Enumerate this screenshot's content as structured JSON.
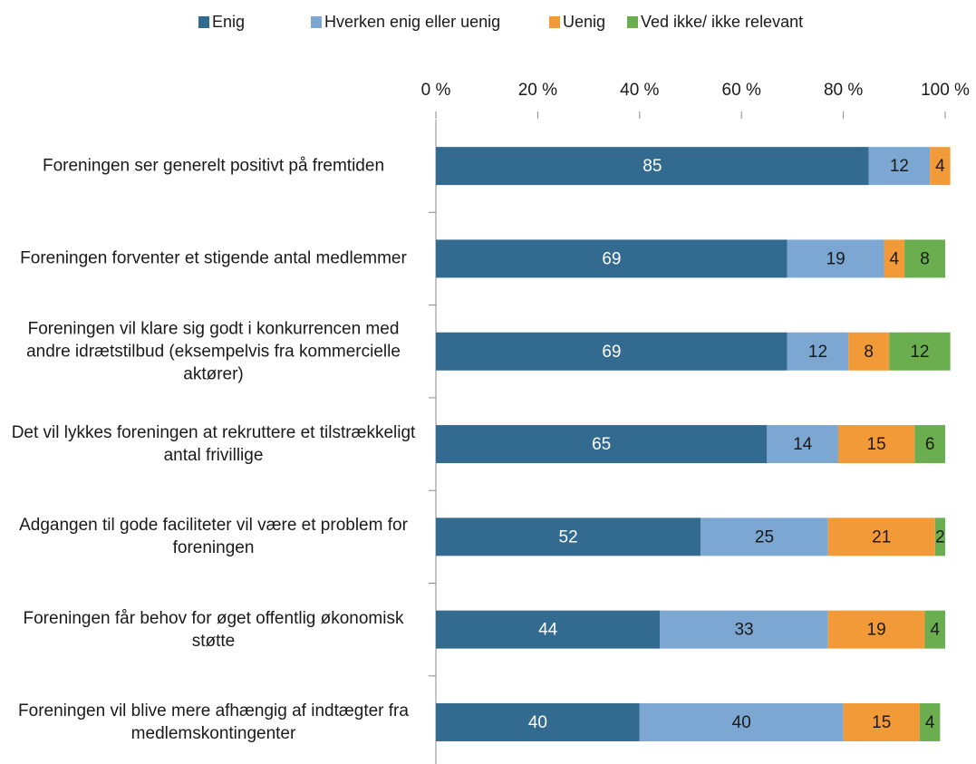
{
  "chart_data": {
    "type": "stacked_bar_horizontal",
    "categories": [
      "Foreningen ser generelt positivt på fremtiden",
      "Foreningen forventer et stigende antal medlemmer",
      "Foreningen vil klare sig godt i konkurrencen med andre idrætstilbud (eksempelvis fra kommercielle aktører)",
      "Det vil lykkes foreningen at rekruttere et tilstrækkeligt antal frivillige",
      "Adgangen til gode faciliteter vil være et problem for foreningen",
      "Foreningen får behov for øget offentlig økonomisk støtte",
      "Foreningen vil blive mere afhængig af indtægter fra medlemskontingenter"
    ],
    "series": [
      {
        "name": "Enig",
        "color": "#336a90",
        "label_color": "#ffffff",
        "values": [
          85,
          69,
          69,
          65,
          52,
          44,
          40
        ]
      },
      {
        "name": "Hverken enig eller uenig",
        "color": "#7ba7d2",
        "label_color": "#1a1a1a",
        "values": [
          12,
          19,
          12,
          14,
          25,
          33,
          40
        ]
      },
      {
        "name": "Uenig",
        "color": "#f39a38",
        "label_color": "#1a1a1a",
        "values": [
          4,
          4,
          8,
          15,
          21,
          19,
          15
        ]
      },
      {
        "name": "Ved ikke/ ikke relevant",
        "color": "#6aae4f",
        "label_color": "#1a1a1a",
        "values": [
          null,
          8,
          12,
          6,
          2,
          4,
          4
        ]
      }
    ],
    "xlim": [
      0,
      100
    ],
    "xticks": [
      {
        "value": 0,
        "label": "0 %"
      },
      {
        "value": 20,
        "label": "20 %"
      },
      {
        "value": 40,
        "label": "40 %"
      },
      {
        "value": 60,
        "label": "60 %"
      },
      {
        "value": 80,
        "label": "80 %"
      },
      {
        "value": 100,
        "label": "100 %"
      }
    ],
    "legend": "top"
  }
}
